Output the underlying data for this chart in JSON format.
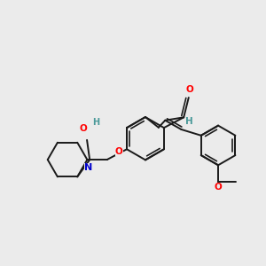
{
  "bg_color": "#ebebeb",
  "bond_color": "#1a1a1a",
  "bond_width": 1.4,
  "atom_colors": {
    "O": "#ff0000",
    "N": "#0000cc",
    "H": "#4a9999"
  },
  "xlim": [
    -1.0,
    8.5
  ],
  "ylim": [
    -2.5,
    4.0
  ]
}
